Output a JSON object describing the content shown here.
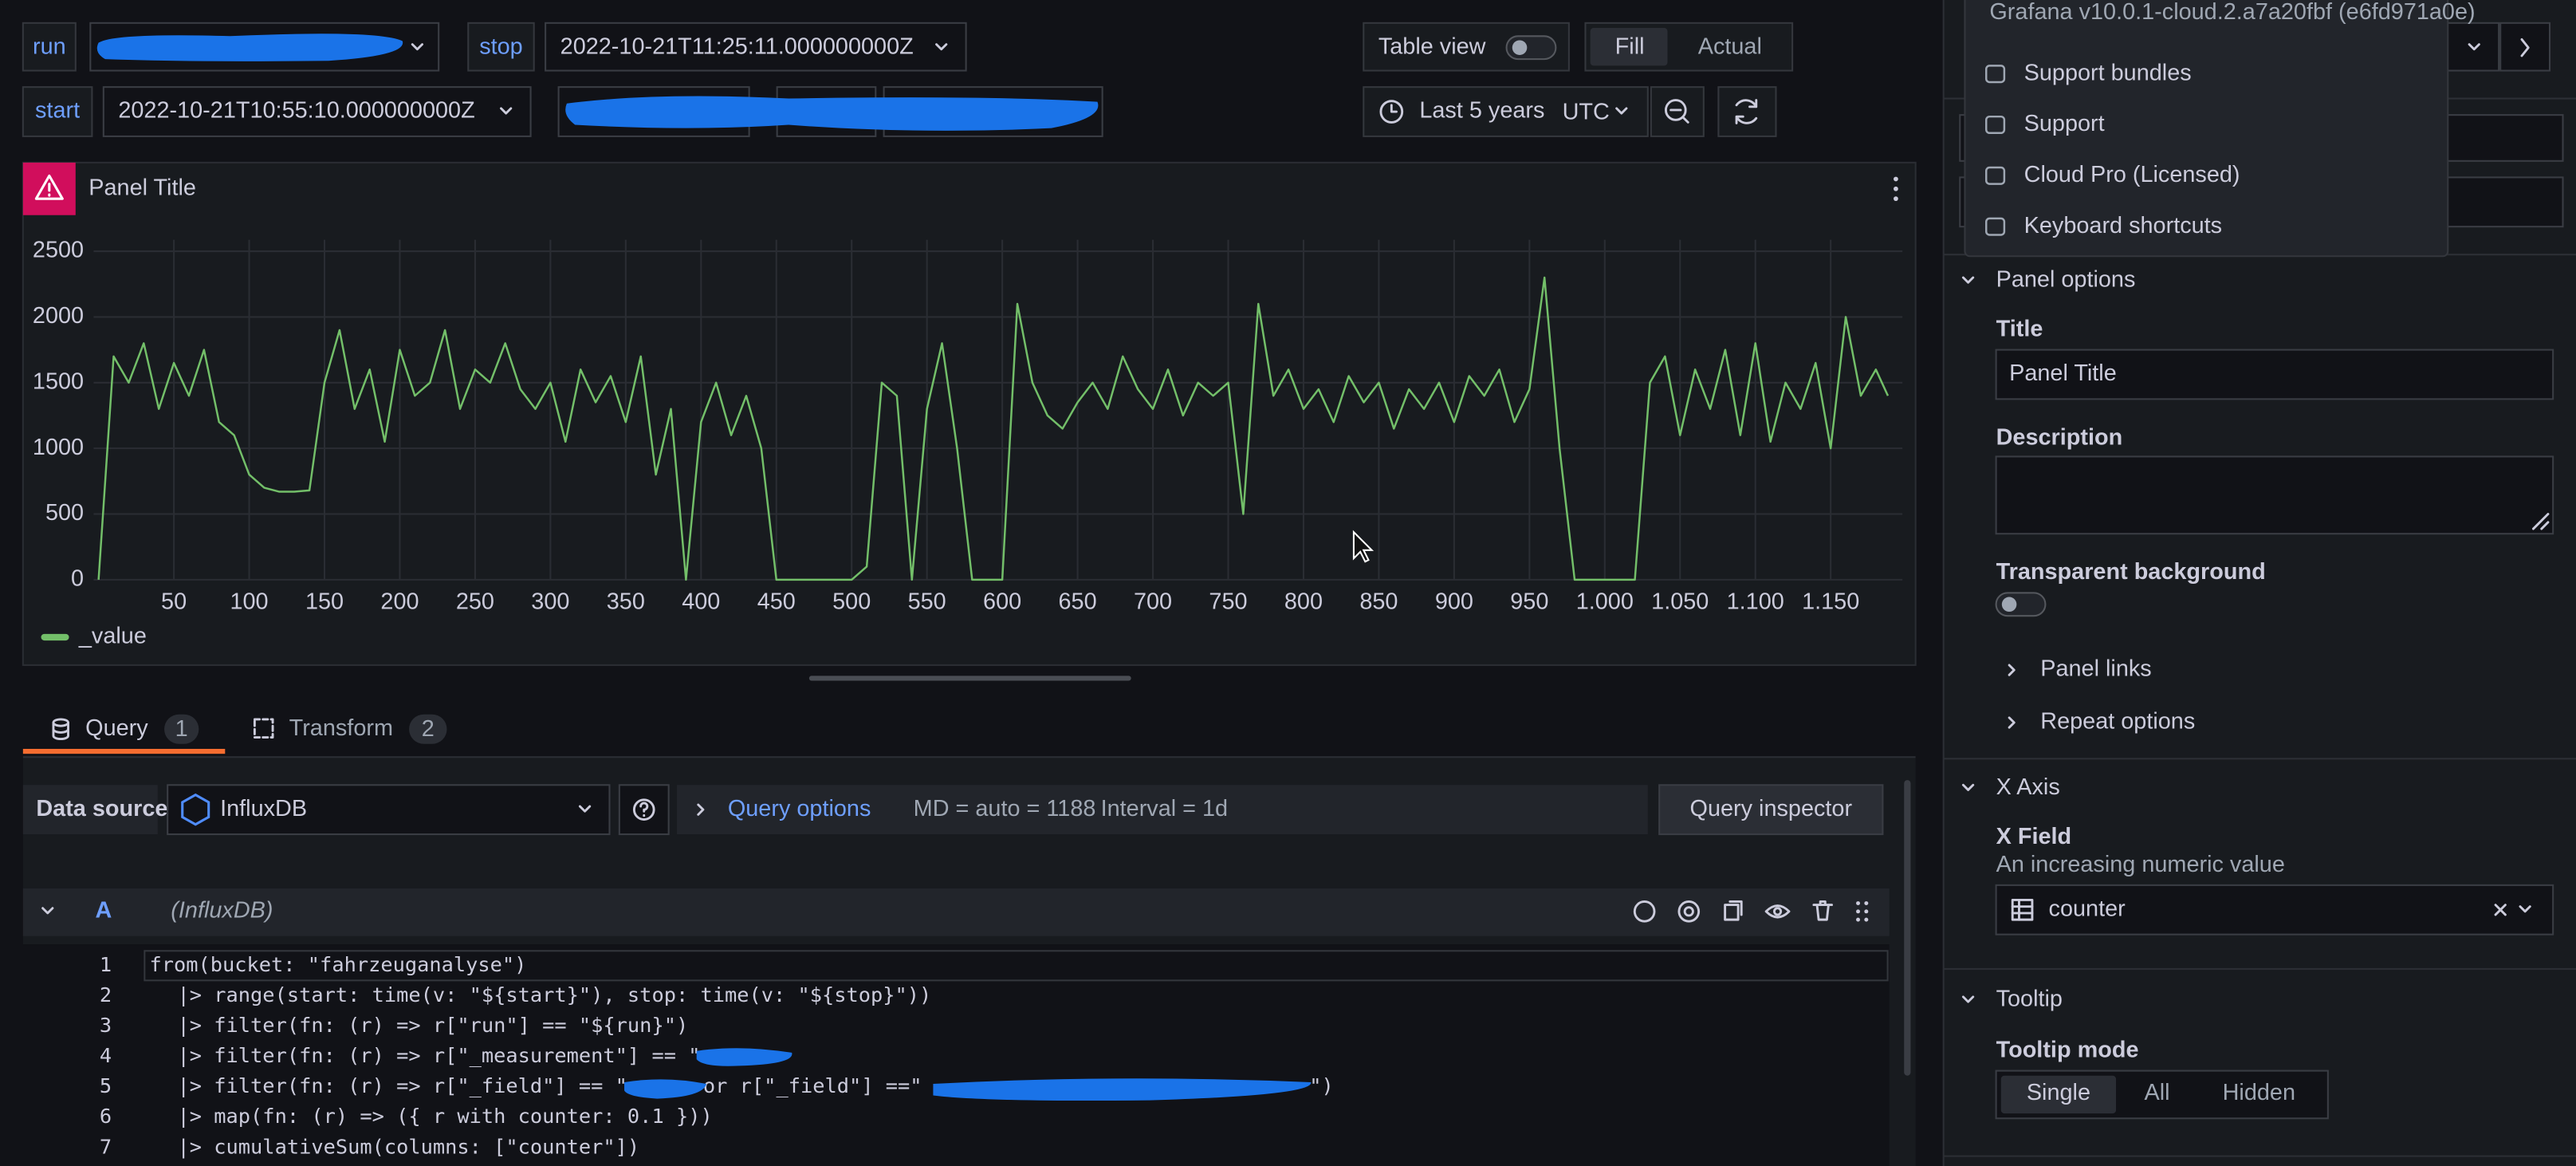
{
  "variables": [
    {
      "name": "run"
    },
    {
      "name": "stop",
      "value": "2022-10-21T11:25:11.000000000Z"
    },
    {
      "name": "start",
      "value": "2022-10-21T10:55:10.000000000Z"
    }
  ],
  "toolbar": {
    "table_view": "Table view",
    "modes": [
      "Fill",
      "Actual"
    ],
    "time_range": "Last 5 years",
    "timezone": "UTC"
  },
  "panel": {
    "title": "Panel Title"
  },
  "chart_data": {
    "type": "line",
    "x": [
      0,
      10,
      20,
      30,
      40,
      50,
      60,
      70,
      80,
      90,
      100,
      110,
      120,
      130,
      140,
      150,
      160,
      170,
      180,
      190,
      200,
      210,
      220,
      230,
      240,
      250,
      260,
      270,
      280,
      290,
      300,
      310,
      320,
      330,
      340,
      350,
      360,
      370,
      380,
      390,
      400,
      410,
      420,
      430,
      440,
      450,
      460,
      470,
      480,
      490,
      500,
      510,
      520,
      530,
      540,
      550,
      560,
      570,
      580,
      590,
      600,
      610,
      620,
      630,
      640,
      650,
      660,
      670,
      680,
      690,
      700,
      710,
      720,
      730,
      740,
      750,
      760,
      770,
      780,
      790,
      800,
      810,
      820,
      830,
      840,
      850,
      860,
      870,
      880,
      890,
      900,
      910,
      920,
      930,
      940,
      950,
      960,
      970,
      980,
      990,
      1000,
      1010,
      1020,
      1030,
      1040,
      1050,
      1060,
      1070,
      1080,
      1090,
      1100,
      1110,
      1120,
      1130,
      1140,
      1150,
      1160,
      1170,
      1180,
      1188
    ],
    "series": [
      {
        "name": "_value",
        "color": "#73bf69",
        "values": [
          0,
          1700,
          1500,
          1800,
          1300,
          1650,
          1400,
          1750,
          1200,
          1100,
          800,
          700,
          670,
          670,
          680,
          1500,
          1900,
          1300,
          1600,
          1050,
          1750,
          1400,
          1500,
          1900,
          1300,
          1600,
          1500,
          1800,
          1450,
          1300,
          1500,
          1050,
          1600,
          1350,
          1550,
          1200,
          1700,
          800,
          1300,
          0,
          1200,
          1500,
          1100,
          1400,
          1000,
          0,
          0,
          0,
          0,
          0,
          0,
          100,
          1500,
          1400,
          0,
          1300,
          1800,
          1000,
          0,
          0,
          0,
          2100,
          1500,
          1250,
          1150,
          1350,
          1500,
          1300,
          1700,
          1450,
          1300,
          1600,
          1250,
          1500,
          1400,
          1500,
          500,
          2100,
          1400,
          1600,
          1300,
          1450,
          1200,
          1550,
          1350,
          1500,
          1150,
          1450,
          1300,
          1500,
          1200,
          1550,
          1400,
          1600,
          1200,
          1450,
          2300,
          1000,
          0,
          0,
          0,
          0,
          0,
          1500,
          1700,
          1100,
          1600,
          1300,
          1750,
          1100,
          1800,
          1050,
          1500,
          1300,
          1650,
          1000,
          2000,
          1400,
          1600,
          1400
        ]
      }
    ],
    "xlim": [
      0,
      1190
    ],
    "ylim": [
      0,
      2500
    ],
    "xticks": [
      50,
      100,
      150,
      200,
      250,
      300,
      350,
      400,
      450,
      500,
      550,
      600,
      650,
      700,
      750,
      800,
      850,
      900,
      950,
      {
        "value": 1000,
        "label": "1.000"
      },
      {
        "value": 1050,
        "label": "1.050"
      },
      {
        "value": 1100,
        "label": "1.100"
      },
      {
        "value": 1150,
        "label": "1.150"
      }
    ],
    "yticks": [
      0,
      500,
      1000,
      1500,
      2000,
      2500
    ],
    "grid": true
  },
  "tabs": [
    {
      "label": "Query",
      "count": 1
    },
    {
      "label": "Transform",
      "count": 2
    }
  ],
  "query": {
    "data_source_label": "Data source",
    "data_source": "InfluxDB",
    "options_label": "Query options",
    "max_data_points": "MD = auto = 1188",
    "interval": "Interval = 1d",
    "inspector": "Query inspector",
    "ref_id": "A",
    "ref_datasource": "(InfluxDB)",
    "code": [
      {
        "number": 1,
        "text": "from(bucket: \"fahrzeuganalyse\")"
      },
      {
        "number": 2,
        "text": "|> range(start: time(v: \"${start}\"), stop: time(v: \"${stop}\"))"
      },
      {
        "number": 3,
        "text": "|> filter(fn: (r) => r[\"run\"] == \"${run}\")"
      },
      {
        "number": 4,
        "text": "|> filter(fn: (r) => r[\"_measurement\"] == \""
      },
      {
        "number": 5,
        "text": "|> filter(fn: (r) => r[\"_field\"] == \"",
        "continuation": "or r[\"_field\"] ==\"",
        "ending": "\")"
      },
      {
        "number": 6,
        "text": "|> map(fn: (r) => ({ r with counter: 0.1 }))"
      },
      {
        "number": 7,
        "text": "|> cumulativeSum(columns: [\"counter\"])"
      }
    ]
  },
  "help_menu": {
    "version": "Grafana v10.0.1-cloud.2.a7a20fbf (e6fd971a0e)",
    "items": [
      "Support bundles",
      "Support",
      "Cloud Pro (Licensed)",
      "Keyboard shortcuts"
    ]
  },
  "options_pane": {
    "panel_options": {
      "heading": "Panel options",
      "title_label": "Title",
      "title_value": "Panel Title",
      "description_label": "Description",
      "transparent_label": "Transparent background",
      "panel_links": "Panel links",
      "repeat_options": "Repeat options"
    },
    "x_axis": {
      "heading": "X Axis",
      "field_label": "X Field",
      "field_description": "An increasing numeric value",
      "field_value": "counter"
    },
    "tooltip": {
      "heading": "Tooltip",
      "mode_label": "Tooltip mode",
      "modes": [
        "Single",
        "All",
        "Hidden"
      ]
    }
  }
}
